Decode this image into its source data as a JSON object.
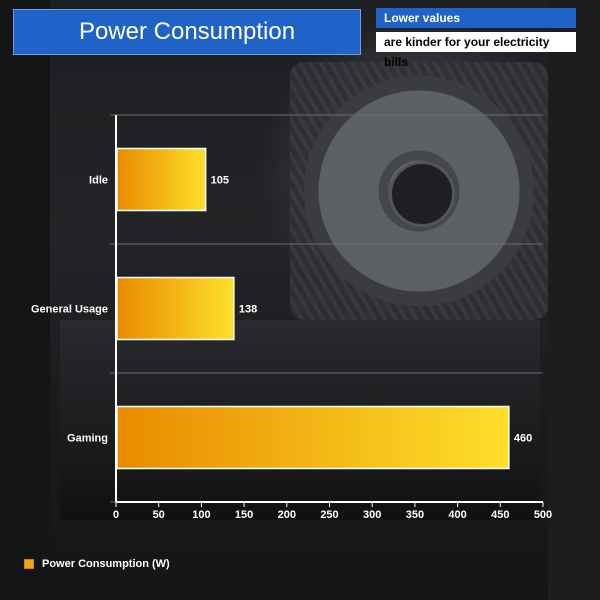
{
  "header": {
    "title": "Power Consumption",
    "note_line1": "Lower values",
    "note_line2": "are kinder for your electricity bills"
  },
  "colors": {
    "title_bg": "#1f63c8",
    "bar_start": "#e98a00",
    "bar_end": "#fde02a",
    "bar_border": "#ffffff"
  },
  "chart_data": {
    "type": "bar",
    "orientation": "horizontal",
    "title": "Power Consumption",
    "categories": [
      "Idle",
      "General Usage",
      "Gaming"
    ],
    "series": [
      {
        "name": "Power Consumption (W)",
        "values": [
          105,
          138,
          460
        ]
      }
    ],
    "xlim": [
      0,
      500
    ],
    "xticks": [
      0,
      50,
      100,
      150,
      200,
      250,
      300,
      350,
      400,
      450,
      500
    ],
    "grid": true,
    "legend": "bottom-left"
  },
  "legend": {
    "label": "Power Consumption (W)"
  }
}
